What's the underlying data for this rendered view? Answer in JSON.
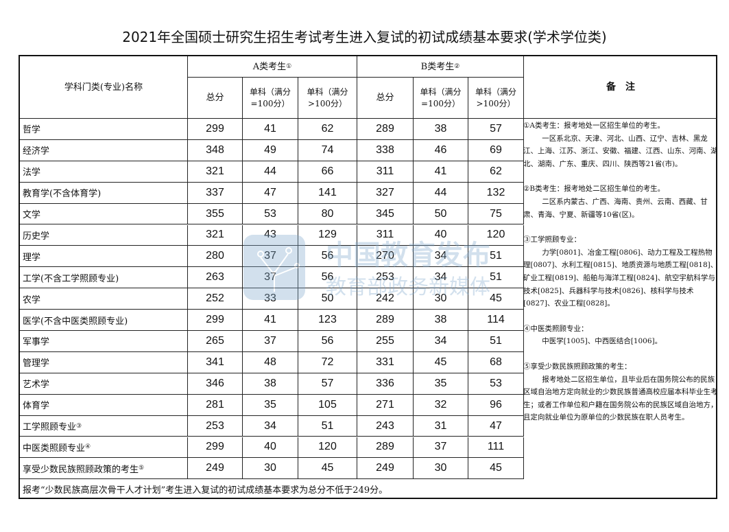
{
  "title": "2021年全国硕士研究生招生考试考生进入复试的初试成绩基本要求(学术学位类)",
  "header": {
    "subject": "学科门类(专业)名称",
    "group_a": "A类考生",
    "group_a_mark": "①",
    "group_b": "B类考生",
    "group_b_mark": "②",
    "total": "总分",
    "single_100": "单科（满分=100分）",
    "single_gt100": "单科（满分>100分）",
    "notes": "备　注"
  },
  "rows": [
    {
      "name": "哲学",
      "mark": "",
      "a": [
        "299",
        "41",
        "62"
      ],
      "b": [
        "289",
        "38",
        "57"
      ]
    },
    {
      "name": "经济学",
      "mark": "",
      "a": [
        "348",
        "49",
        "74"
      ],
      "b": [
        "338",
        "46",
        "69"
      ]
    },
    {
      "name": "法学",
      "mark": "",
      "a": [
        "321",
        "44",
        "66"
      ],
      "b": [
        "311",
        "41",
        "62"
      ]
    },
    {
      "name": "教育学(不含体育学)",
      "mark": "",
      "a": [
        "337",
        "47",
        "141"
      ],
      "b": [
        "327",
        "44",
        "132"
      ]
    },
    {
      "name": "文学",
      "mark": "",
      "a": [
        "355",
        "53",
        "80"
      ],
      "b": [
        "345",
        "50",
        "75"
      ]
    },
    {
      "name": "历史学",
      "mark": "",
      "a": [
        "321",
        "43",
        "129"
      ],
      "b": [
        "311",
        "40",
        "120"
      ]
    },
    {
      "name": "理学",
      "mark": "",
      "a": [
        "280",
        "37",
        "56"
      ],
      "b": [
        "270",
        "34",
        "51"
      ]
    },
    {
      "name": "工学(不含工学照顾专业)",
      "mark": "",
      "a": [
        "263",
        "37",
        "56"
      ],
      "b": [
        "253",
        "34",
        "51"
      ]
    },
    {
      "name": "农学",
      "mark": "",
      "a": [
        "252",
        "33",
        "50"
      ],
      "b": [
        "242",
        "30",
        "45"
      ]
    },
    {
      "name": "医学(不含中医类照顾专业)",
      "mark": "",
      "a": [
        "299",
        "41",
        "123"
      ],
      "b": [
        "289",
        "38",
        "114"
      ]
    },
    {
      "name": "军事学",
      "mark": "",
      "a": [
        "265",
        "37",
        "56"
      ],
      "b": [
        "255",
        "34",
        "51"
      ]
    },
    {
      "name": "管理学",
      "mark": "",
      "a": [
        "341",
        "48",
        "72"
      ],
      "b": [
        "331",
        "45",
        "68"
      ]
    },
    {
      "name": "艺术学",
      "mark": "",
      "a": [
        "346",
        "38",
        "57"
      ],
      "b": [
        "336",
        "35",
        "53"
      ]
    },
    {
      "name": "体育学",
      "mark": "",
      "a": [
        "281",
        "35",
        "105"
      ],
      "b": [
        "271",
        "32",
        "96"
      ]
    },
    {
      "name": "工学照顾专业",
      "mark": "③",
      "a": [
        "253",
        "34",
        "51"
      ],
      "b": [
        "243",
        "31",
        "47"
      ]
    },
    {
      "name": "中医类照顾专业",
      "mark": "④",
      "a": [
        "299",
        "40",
        "120"
      ],
      "b": [
        "289",
        "37",
        "111"
      ]
    },
    {
      "name": "享受少数民族照顾政策的考生",
      "mark": "⑤",
      "a": [
        "249",
        "30",
        "45"
      ],
      "b": [
        "249",
        "30",
        "45"
      ]
    }
  ],
  "footer": "报考“少数民族高层次骨干人才计划”考生进入复试的初试成绩基本要求为总分不低于249分。",
  "notes": [
    {
      "head": "①A类考生：报考地处一区招生单位的考生。",
      "body": "一区系北京、天津、河北、山西、辽宁、吉林、黑龙江、上海、江苏、浙江、安徽、福建、江西、山东、河南、湖北、湖南、广东、重庆、四川、陕西等21省(市)。"
    },
    {
      "head": "②B类考生：报考地处二区招生单位的考生。",
      "body": "二区系内蒙古、广西、海南、贵州、云南、西藏、甘肃、青海、宁夏、新疆等10省(区)。"
    },
    {
      "head": "③工学照顾专业：",
      "body": "力学[0801]、冶金工程[0806]、动力工程及工程热物理[0807]、水利工程[0815]、地质资源与地质工程[0818]、矿业工程[0819]、船舶与海洋工程[0824]、航空宇航科学与技术[0825]、兵器科学与技术[0826]、核科学与技术[0827]、农业工程[0828]。"
    },
    {
      "head": "④中医类照顾专业：",
      "body": "中医学[1005]、中西医结合[1006]。"
    },
    {
      "head": "⑤享受少数民族照顾政策的考生：",
      "body": "报考地处二区招生单位，且毕业后在国务院公布的民族区域自治地方定向就业的少数民族普通高校应届本科毕业生考生；或者工作单位和户籍在国务院公布的民族区域自治地方，且定向就业单位为原单位的少数民族在职人员考生。"
    }
  ],
  "watermark": {
    "line1": "中国教育发布",
    "line2": "教育部政务新媒体",
    "color": "#7fa9cc"
  }
}
